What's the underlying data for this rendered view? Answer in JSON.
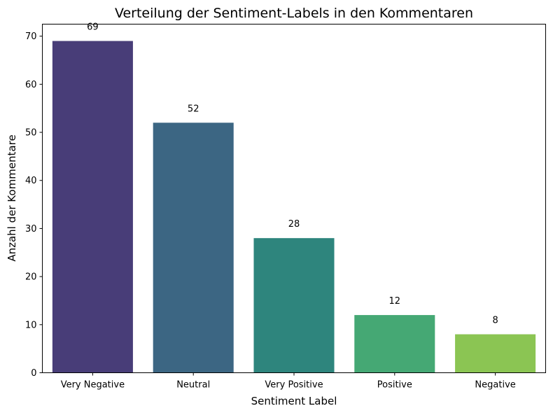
{
  "chart_data": {
    "type": "bar",
    "title": "Verteilung der Sentiment-Labels in den Kommentaren",
    "xlabel": "Sentiment Label",
    "ylabel": "Anzahl der Kommentare",
    "categories": [
      "Very Negative",
      "Neutral",
      "Very Positive",
      "Positive",
      "Negative"
    ],
    "values": [
      69,
      52,
      28,
      12,
      8
    ],
    "colors": [
      "#483d78",
      "#3c6683",
      "#2e857d",
      "#45a874",
      "#8bc553"
    ],
    "ylim": [
      0,
      72.5
    ],
    "yticks": [
      0,
      10,
      20,
      30,
      40,
      50,
      60,
      70
    ],
    "grid": false
  }
}
